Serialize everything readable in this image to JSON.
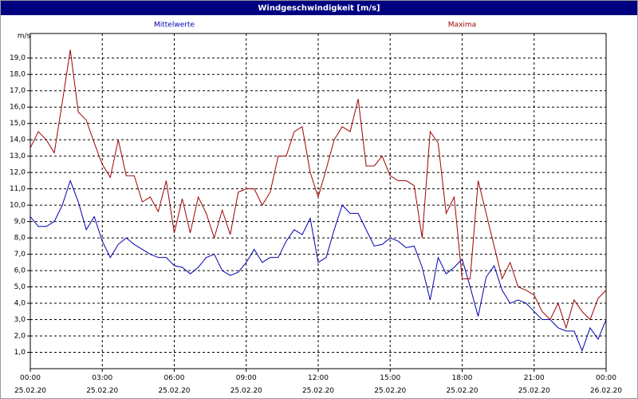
{
  "chart_data": {
    "type": "line",
    "title": "Windgeschwindigkeit [m/s]",
    "y_label": "m/s",
    "x": [
      0,
      20,
      40,
      60,
      80,
      100,
      120,
      140,
      160,
      180,
      200,
      220,
      240,
      260,
      280,
      300,
      320,
      340,
      360,
      380,
      400,
      420,
      440,
      460,
      480,
      500,
      520,
      540,
      560,
      580,
      600,
      620,
      640,
      660,
      680,
      700,
      720,
      740,
      760,
      780,
      800,
      820,
      840,
      860,
      880,
      900,
      920,
      940,
      960,
      980,
      1000,
      1020,
      1040,
      1060,
      1080,
      1100,
      1120,
      1140,
      1160,
      1180,
      1200,
      1220,
      1240,
      1260,
      1280,
      1300,
      1320,
      1340,
      1360,
      1380,
      1400,
      1420,
      1440
    ],
    "xlim": [
      0,
      1440
    ],
    "xticks": [
      {
        "value": 0,
        "label": "00:00 25.02.20"
      },
      {
        "value": 180,
        "label": "03:00 25.02.20"
      },
      {
        "value": 360,
        "label": "06:00 25.02.20"
      },
      {
        "value": 540,
        "label": "09:00 25.02.20"
      },
      {
        "value": 720,
        "label": "12:00 25.02.20"
      },
      {
        "value": 900,
        "label": "15:00 25.02.20"
      },
      {
        "value": 1080,
        "label": "18:00 25.02.20"
      },
      {
        "value": 1260,
        "label": "21:00 25.02.20"
      },
      {
        "value": 1440,
        "label": "00:00 26.02.20"
      }
    ],
    "ylim": [
      0,
      20.5
    ],
    "yticks": [
      {
        "value": 1,
        "label": "1,0"
      },
      {
        "value": 2,
        "label": "2,0"
      },
      {
        "value": 3,
        "label": "3,0"
      },
      {
        "value": 4,
        "label": "4,0"
      },
      {
        "value": 5,
        "label": "5,0"
      },
      {
        "value": 6,
        "label": "6,0"
      },
      {
        "value": 7,
        "label": "7,0"
      },
      {
        "value": 8,
        "label": "8,0"
      },
      {
        "value": 9,
        "label": "9,0"
      },
      {
        "value": 10,
        "label": "10,0"
      },
      {
        "value": 11,
        "label": "11,0"
      },
      {
        "value": 12,
        "label": "12,0"
      },
      {
        "value": 13,
        "label": "13,0"
      },
      {
        "value": 14,
        "label": "14,0"
      },
      {
        "value": 15,
        "label": "15,0"
      },
      {
        "value": 16,
        "label": "16,0"
      },
      {
        "value": 17,
        "label": "17,0"
      },
      {
        "value": 18,
        "label": "18,0"
      },
      {
        "value": 19,
        "label": "19,0"
      }
    ],
    "grid": true,
    "series": [
      {
        "name": "Mittelwerte",
        "color": "#0000b0",
        "values": [
          9.3,
          8.7,
          8.7,
          9.0,
          10.0,
          11.5,
          10.2,
          8.5,
          9.3,
          7.8,
          6.8,
          7.6,
          8.0,
          7.6,
          7.3,
          7.0,
          6.8,
          6.8,
          6.3,
          6.2,
          5.8,
          6.2,
          6.8,
          7.0,
          6.0,
          5.7,
          5.9,
          6.5,
          7.3,
          6.5,
          6.8,
          6.8,
          7.8,
          8.5,
          8.2,
          9.2,
          6.5,
          6.8,
          8.5,
          10.0,
          9.5,
          9.5,
          8.5,
          7.5,
          7.6,
          8.0,
          7.8,
          7.4,
          7.5,
          6.2,
          4.2,
          6.8,
          5.8,
          6.2,
          6.7,
          5.0,
          3.2,
          5.6,
          6.3,
          4.8,
          4.0,
          4.2,
          4.0,
          3.5,
          3.0,
          3.0,
          2.5,
          2.3,
          2.3,
          1.1,
          2.5,
          1.8,
          3.0
        ]
      },
      {
        "name": "Maxima",
        "color": "#a00000",
        "values": [
          13.5,
          14.5,
          14.0,
          13.2,
          16.3,
          19.5,
          15.7,
          15.2,
          13.8,
          12.5,
          11.7,
          14.0,
          11.8,
          11.8,
          10.2,
          10.5,
          9.6,
          11.5,
          8.3,
          10.4,
          8.3,
          10.5,
          9.5,
          8.0,
          9.7,
          8.2,
          10.8,
          11.0,
          11.0,
          10.0,
          10.8,
          13.0,
          13.0,
          14.5,
          14.8,
          12.0,
          10.5,
          12.2,
          14.0,
          14.8,
          14.5,
          16.5,
          12.4,
          12.4,
          13.0,
          11.8,
          11.5,
          11.5,
          11.2,
          8.0,
          14.5,
          13.8,
          9.5,
          10.5,
          5.5,
          5.5,
          11.5,
          9.5,
          7.5,
          5.5,
          6.5,
          5.0,
          4.8,
          4.5,
          3.5,
          3.0,
          4.0,
          2.5,
          4.2,
          3.5,
          3.0,
          4.3,
          4.8
        ]
      }
    ]
  }
}
